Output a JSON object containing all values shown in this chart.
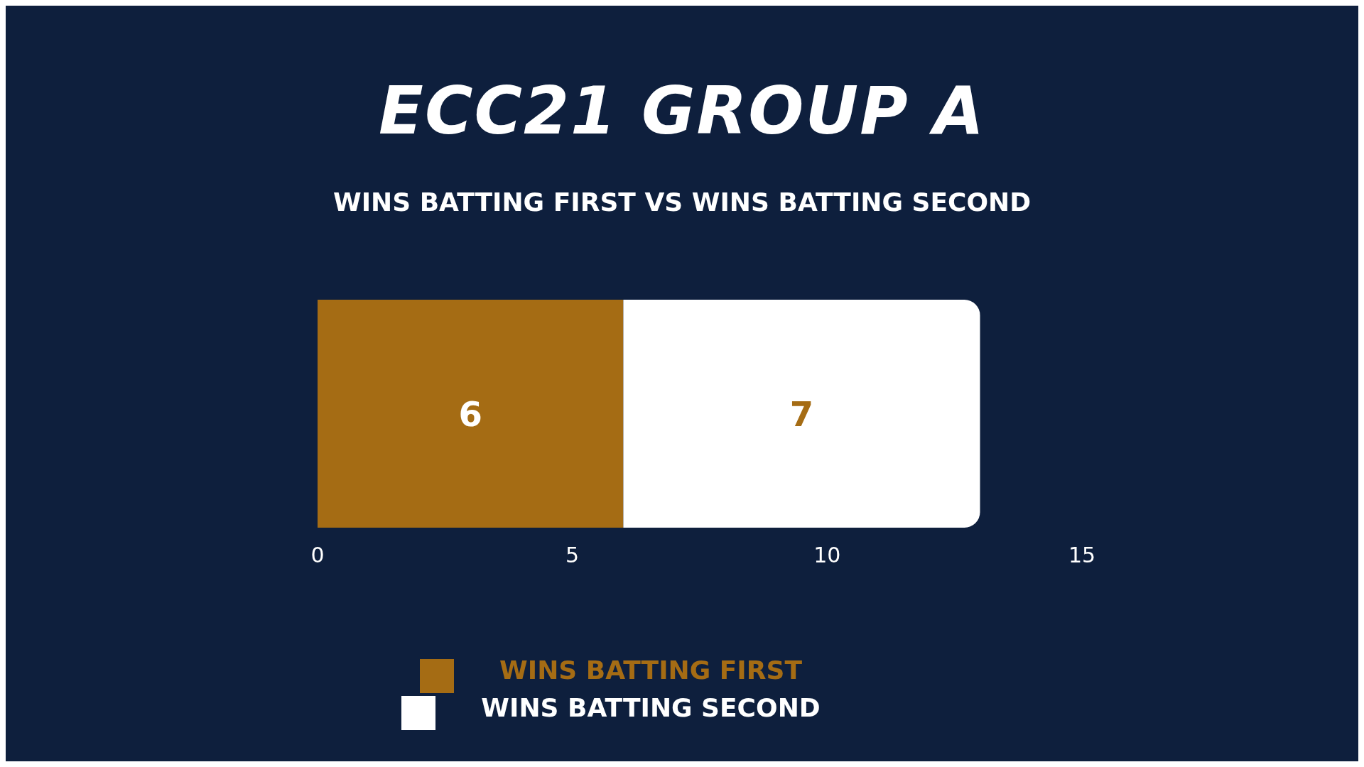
{
  "chart_data": {
    "type": "bar",
    "title": "ECC21 GROUP A",
    "subtitle": "WINS BATTING FIRST VS WINS BATTING SECOND",
    "orientation": "horizontal",
    "stacked": true,
    "categories": [
      null
    ],
    "series": [
      {
        "name": "WINS BATTING FIRST",
        "color": "#a56c14",
        "values": [
          6
        ]
      },
      {
        "name": "WINS BATTING SECOND",
        "color": "#ffffff",
        "values": [
          7
        ]
      }
    ],
    "xlim": [
      0,
      15
    ],
    "xticks": [
      0,
      5,
      10,
      15
    ],
    "data_labels": true,
    "legend": "bottom",
    "grid": false
  }
}
